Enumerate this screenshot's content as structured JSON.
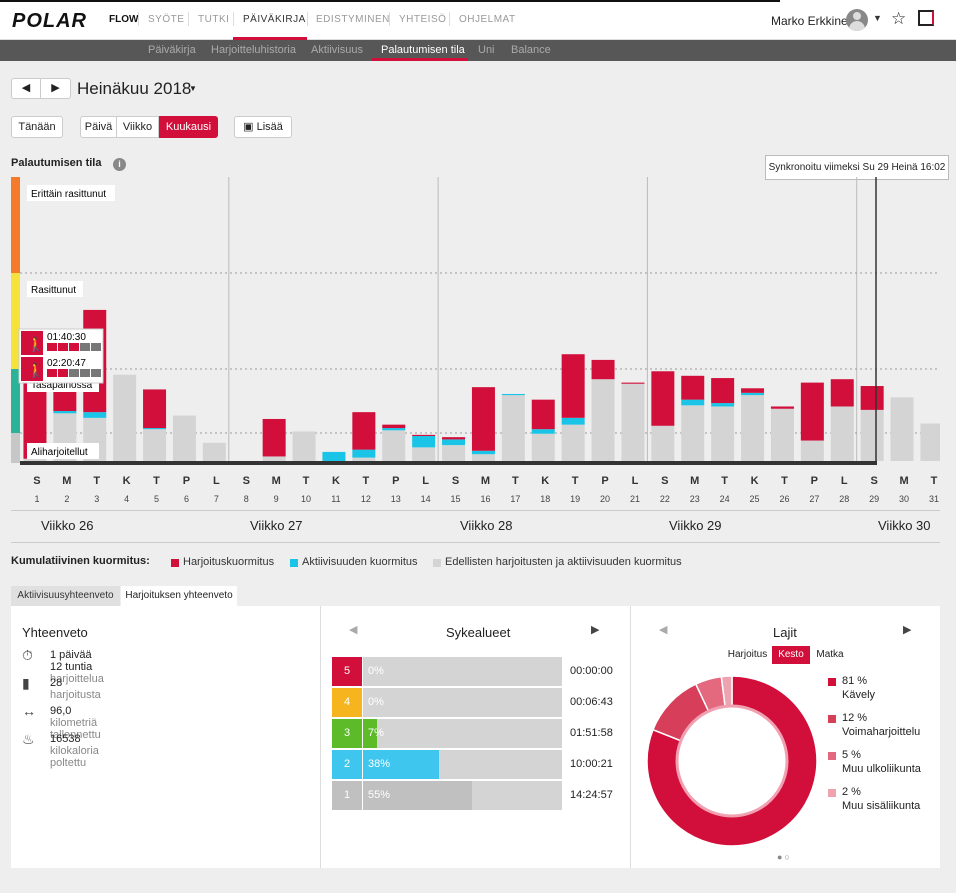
{
  "app": {
    "logo": "POLAR",
    "product": "FLOW"
  },
  "nav": [
    "SYÖTE",
    "TUTKI",
    "PÄIVÄKIRJA",
    "EDISTYMINEN",
    "YHTEISÖ",
    "OHJELMAT"
  ],
  "user": {
    "name": "Marko Erkkinen"
  },
  "subnav": [
    "Päiväkirja",
    "Harjoitteluhistoria",
    "Aktiivisuus",
    "Palautumisen tila",
    "Uni",
    "Balance"
  ],
  "period": {
    "title": "Heinäkuu 2018",
    "today": "Tänään",
    "day": "Päivä",
    "week": "Viikko",
    "month": "Kuukausi",
    "add": "Lisää"
  },
  "recovery": {
    "title": "Palautumisen tila",
    "sync": "Synkronoitu viimeksi Su 29 Heinä 16:02",
    "zones": [
      "Erittäin rasittunut",
      "Rasittunut",
      "Tasapainossa",
      "Aliharjoitellut"
    ],
    "tooltip": [
      "01:40:30",
      "02:20:47"
    ]
  },
  "chart_data": {
    "type": "bar",
    "title": "Palautumisen tila",
    "days": [
      1,
      2,
      3,
      4,
      5,
      6,
      7,
      8,
      9,
      10,
      11,
      12,
      13,
      14,
      15,
      16,
      17,
      18,
      19,
      20,
      21,
      22,
      23,
      24,
      25,
      26,
      27,
      28,
      29,
      30,
      31
    ],
    "weekday_letters": [
      "S",
      "M",
      "T",
      "K",
      "T",
      "P",
      "L",
      "S",
      "M",
      "T",
      "K",
      "T",
      "P",
      "L",
      "S",
      "M",
      "T",
      "K",
      "T",
      "P",
      "L",
      "S",
      "M",
      "T",
      "K",
      "T",
      "P",
      "L",
      "S",
      "M",
      "T"
    ],
    "series": [
      {
        "name": "Harjoituskuormitus",
        "color": "#d10f3a",
        "values": [
          0.98,
          0.41,
          0.9,
          0,
          0.34,
          0,
          0,
          0,
          0.33,
          0,
          0,
          0.33,
          0.03,
          0.01,
          0.02,
          0.56,
          0,
          0.26,
          0.56,
          0.17,
          0.01,
          0.48,
          0.21,
          0.22,
          0.04,
          0.02,
          0.51,
          0.24,
          0.21,
          0,
          0
        ]
      },
      {
        "name": "Aktiivisuuden kuormitus",
        "color": "#19c4e6",
        "values": [
          0,
          0.02,
          0.05,
          0,
          0.01,
          0,
          0,
          0,
          0,
          0,
          0.08,
          0.07,
          0.02,
          0.1,
          0.05,
          0.03,
          0.01,
          0.04,
          0.06,
          0,
          0,
          0,
          0.05,
          0.03,
          0.02,
          0,
          0,
          0,
          0,
          0,
          0
        ]
      },
      {
        "name": "Edellisten harjoitusten ja aktiivisuuden kuormitus",
        "color": "#d4d4d4",
        "values": [
          0.02,
          0.42,
          0.38,
          0.76,
          0.28,
          0.4,
          0.16,
          0,
          0.04,
          0.26,
          0,
          0.03,
          0.27,
          0.12,
          0.14,
          0.06,
          0.58,
          0.24,
          0.32,
          0.72,
          0.68,
          0.31,
          0.49,
          0.48,
          0.58,
          0.46,
          0.18,
          0.48,
          0.45,
          0.56,
          0.33
        ]
      }
    ],
    "ylim": [
      0,
      2.5
    ],
    "grid": "dotted zone lines"
  },
  "weeks": [
    "Viikko 26",
    "Viikko 27",
    "Viikko 28",
    "Viikko 29",
    "Viikko 30"
  ],
  "legend": {
    "title": "Kumulatiivinen kuormitus:",
    "items": [
      "Harjoituskuormitus",
      "Aktiivisuuden kuormitus",
      "Edellisten harjoitusten ja aktiivisuuden kuormitus"
    ]
  },
  "tabs": [
    "Aktiivisuusyhteenveto",
    "Harjoituksen yhteenveto"
  ],
  "summary": {
    "title": "Yhteenveto",
    "rows": [
      {
        "value": "1 päivää 12 tuntia",
        "unit": "harjoittelua"
      },
      {
        "value": "28",
        "unit": "harjoitusta"
      },
      {
        "value": "96,0",
        "unit": "kilometriä tallennettu"
      },
      {
        "value": "16538",
        "unit": "kilokaloria poltettu"
      }
    ]
  },
  "hr_zones": {
    "title": "Sykealueet",
    "rows": [
      {
        "zone": "5",
        "pct": "0%",
        "pct_value": 0,
        "time": "00:00:00",
        "color": "#d10f3a"
      },
      {
        "zone": "4",
        "pct": "0%",
        "pct_value": 0,
        "time": "00:06:43",
        "color": "#f6b51e"
      },
      {
        "zone": "3",
        "pct": "7%",
        "pct_value": 7,
        "time": "01:51:58",
        "color": "#5dbb2a"
      },
      {
        "zone": "2",
        "pct": "38%",
        "pct_value": 38,
        "time": "10:00:21",
        "color": "#3ec6ef"
      },
      {
        "zone": "1",
        "pct": "55%",
        "pct_value": 55,
        "time": "14:24:57",
        "color": "#c0c0c0"
      }
    ]
  },
  "sports": {
    "title": "Lajit",
    "tabs": [
      "Harjoitus",
      "Kesto",
      "Matka"
    ],
    "items": [
      {
        "pct": "81 %",
        "value": 81,
        "name": "Kävely",
        "color": "#d10f3a"
      },
      {
        "pct": "12 %",
        "value": 12,
        "name": "Voimaharjoittelu",
        "color": "#d63e5a"
      },
      {
        "pct": "5 %",
        "value": 5,
        "name": "Muu ulkoliikunta",
        "color": "#e4697f"
      },
      {
        "pct": "2 %",
        "value": 2,
        "name": "Muu sisäliikunta",
        "color": "#eea3b1"
      }
    ]
  }
}
